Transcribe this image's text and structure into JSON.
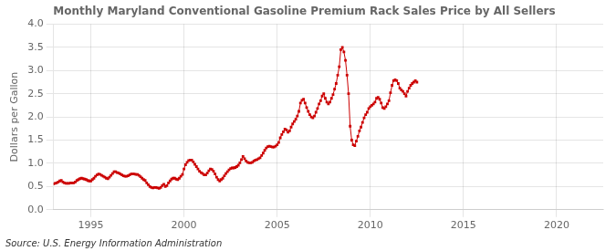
{
  "chart_data": {
    "type": "line",
    "title": "Monthly Maryland Conventional Gasoline Premium Rack Sales Price by All Sellers",
    "ylabel": "Dollars per Gallon",
    "source": "Source: U.S. Energy Information Administration",
    "color": "#cc0000",
    "marker": "square",
    "line_style": "solid",
    "grid": true,
    "xlim": [
      1993.0,
      2022.5
    ],
    "ylim": [
      0.0,
      4.0
    ],
    "xticks": [
      1995,
      2000,
      2005,
      2010,
      2015,
      2020
    ],
    "yticks": [
      {
        "value": 0.0,
        "label": "0.0"
      },
      0.5,
      {
        "value": 1.0,
        "label": "1.0"
      },
      1.5,
      {
        "value": 2.0,
        "label": "2.0"
      },
      2.5,
      {
        "value": 3.0,
        "label": "3.0"
      },
      3.5,
      {
        "value": 4.0,
        "label": "4.0"
      }
    ],
    "x": [
      1993.0,
      1993.083,
      1993.167,
      1993.25,
      1993.333,
      1993.417,
      1993.5,
      1993.583,
      1993.667,
      1993.75,
      1993.833,
      1993.917,
      1994.0,
      1994.083,
      1994.167,
      1994.25,
      1994.333,
      1994.417,
      1994.5,
      1994.583,
      1994.667,
      1994.75,
      1994.833,
      1994.917,
      1995.0,
      1995.083,
      1995.167,
      1995.25,
      1995.333,
      1995.417,
      1995.5,
      1995.583,
      1995.667,
      1995.75,
      1995.833,
      1995.917,
      1996.0,
      1996.083,
      1996.167,
      1996.25,
      1996.333,
      1996.417,
      1996.5,
      1996.583,
      1996.667,
      1996.75,
      1996.833,
      1996.917,
      1997.0,
      1997.083,
      1997.167,
      1997.25,
      1997.333,
      1997.417,
      1997.5,
      1997.583,
      1997.667,
      1997.75,
      1997.833,
      1997.917,
      1998.0,
      1998.083,
      1998.167,
      1998.25,
      1998.333,
      1998.417,
      1998.5,
      1998.583,
      1998.667,
      1998.75,
      1998.833,
      1998.917,
      1999.0,
      1999.083,
      1999.167,
      1999.25,
      1999.333,
      1999.417,
      1999.5,
      1999.583,
      1999.667,
      1999.75,
      1999.833,
      1999.917,
      2000.0,
      2000.083,
      2000.167,
      2000.25,
      2000.333,
      2000.417,
      2000.5,
      2000.583,
      2000.667,
      2000.75,
      2000.833,
      2000.917,
      2001.0,
      2001.083,
      2001.167,
      2001.25,
      2001.333,
      2001.417,
      2001.5,
      2001.583,
      2001.667,
      2001.75,
      2001.833,
      2001.917,
      2002.0,
      2002.083,
      2002.167,
      2002.25,
      2002.333,
      2002.417,
      2002.5,
      2002.583,
      2002.667,
      2002.75,
      2002.833,
      2002.917,
      2003.0,
      2003.083,
      2003.167,
      2003.25,
      2003.333,
      2003.417,
      2003.5,
      2003.583,
      2003.667,
      2003.75,
      2003.833,
      2003.917,
      2004.0,
      2004.083,
      2004.167,
      2004.25,
      2004.333,
      2004.417,
      2004.5,
      2004.583,
      2004.667,
      2004.75,
      2004.833,
      2004.917,
      2005.0,
      2005.083,
      2005.167,
      2005.25,
      2005.333,
      2005.417,
      2005.5,
      2005.583,
      2005.667,
      2005.75,
      2005.833,
      2005.917,
      2006.0,
      2006.083,
      2006.167,
      2006.25,
      2006.333,
      2006.417,
      2006.5,
      2006.583,
      2006.667,
      2006.75,
      2006.833,
      2006.917,
      2007.0,
      2007.083,
      2007.167,
      2007.25,
      2007.333,
      2007.417,
      2007.5,
      2007.583,
      2007.667,
      2007.75,
      2007.833,
      2007.917,
      2008.0,
      2008.083,
      2008.167,
      2008.25,
      2008.333,
      2008.417,
      2008.5,
      2008.583,
      2008.667,
      2008.75,
      2008.833,
      2008.917,
      2009.0,
      2009.083,
      2009.167,
      2009.25,
      2009.333,
      2009.417,
      2009.5,
      2009.583,
      2009.667,
      2009.75,
      2009.833,
      2009.917,
      2010.0,
      2010.083,
      2010.167,
      2010.25,
      2010.333,
      2010.417,
      2010.5,
      2010.583,
      2010.667,
      2010.75,
      2010.833,
      2010.917,
      2011.0,
      2011.083,
      2011.167,
      2011.25,
      2011.333,
      2011.417,
      2011.5,
      2011.583,
      2011.667,
      2011.75,
      2011.833,
      2011.917,
      2012.0,
      2012.083,
      2012.167,
      2012.25,
      2012.333,
      2012.417,
      2012.5
    ],
    "values": [
      0.56,
      0.57,
      0.58,
      0.6,
      0.62,
      0.63,
      0.6,
      0.58,
      0.57,
      0.57,
      0.57,
      0.58,
      0.58,
      0.58,
      0.6,
      0.63,
      0.65,
      0.67,
      0.68,
      0.67,
      0.66,
      0.65,
      0.63,
      0.62,
      0.62,
      0.65,
      0.68,
      0.72,
      0.75,
      0.77,
      0.76,
      0.74,
      0.72,
      0.7,
      0.68,
      0.67,
      0.7,
      0.74,
      0.78,
      0.82,
      0.82,
      0.8,
      0.79,
      0.77,
      0.75,
      0.73,
      0.72,
      0.72,
      0.73,
      0.75,
      0.77,
      0.77,
      0.77,
      0.76,
      0.76,
      0.74,
      0.71,
      0.68,
      0.65,
      0.63,
      0.58,
      0.54,
      0.5,
      0.48,
      0.47,
      0.48,
      0.48,
      0.47,
      0.46,
      0.48,
      0.52,
      0.55,
      0.5,
      0.52,
      0.58,
      0.62,
      0.66,
      0.68,
      0.68,
      0.66,
      0.65,
      0.68,
      0.72,
      0.76,
      0.88,
      0.97,
      1.02,
      1.06,
      1.07,
      1.07,
      1.03,
      0.98,
      0.93,
      0.88,
      0.83,
      0.8,
      0.78,
      0.75,
      0.75,
      0.79,
      0.84,
      0.88,
      0.87,
      0.83,
      0.77,
      0.7,
      0.65,
      0.62,
      0.65,
      0.68,
      0.73,
      0.78,
      0.82,
      0.86,
      0.89,
      0.9,
      0.9,
      0.91,
      0.93,
      0.96,
      1.01,
      1.08,
      1.15,
      1.1,
      1.05,
      1.02,
      1.01,
      1.01,
      1.02,
      1.05,
      1.07,
      1.08,
      1.1,
      1.12,
      1.17,
      1.22,
      1.28,
      1.33,
      1.36,
      1.37,
      1.36,
      1.35,
      1.35,
      1.37,
      1.4,
      1.45,
      1.55,
      1.62,
      1.68,
      1.74,
      1.72,
      1.67,
      1.7,
      1.78,
      1.85,
      1.9,
      1.95,
      2.02,
      2.12,
      2.3,
      2.36,
      2.38,
      2.3,
      2.2,
      2.12,
      2.05,
      2.0,
      1.98,
      2.02,
      2.1,
      2.18,
      2.28,
      2.35,
      2.45,
      2.5,
      2.4,
      2.32,
      2.28,
      2.32,
      2.4,
      2.48,
      2.6,
      2.72,
      2.9,
      3.08,
      3.45,
      3.5,
      3.4,
      3.22,
      2.9,
      2.5,
      1.8,
      1.5,
      1.4,
      1.38,
      1.48,
      1.58,
      1.7,
      1.78,
      1.88,
      1.98,
      2.05,
      2.1,
      2.18,
      2.22,
      2.25,
      2.28,
      2.32,
      2.4,
      2.42,
      2.38,
      2.3,
      2.2,
      2.18,
      2.22,
      2.28,
      2.35,
      2.52,
      2.68,
      2.78,
      2.8,
      2.78,
      2.72,
      2.62,
      2.58,
      2.55,
      2.5,
      2.45,
      2.55,
      2.62,
      2.68,
      2.72,
      2.75,
      2.78,
      2.75
    ]
  }
}
